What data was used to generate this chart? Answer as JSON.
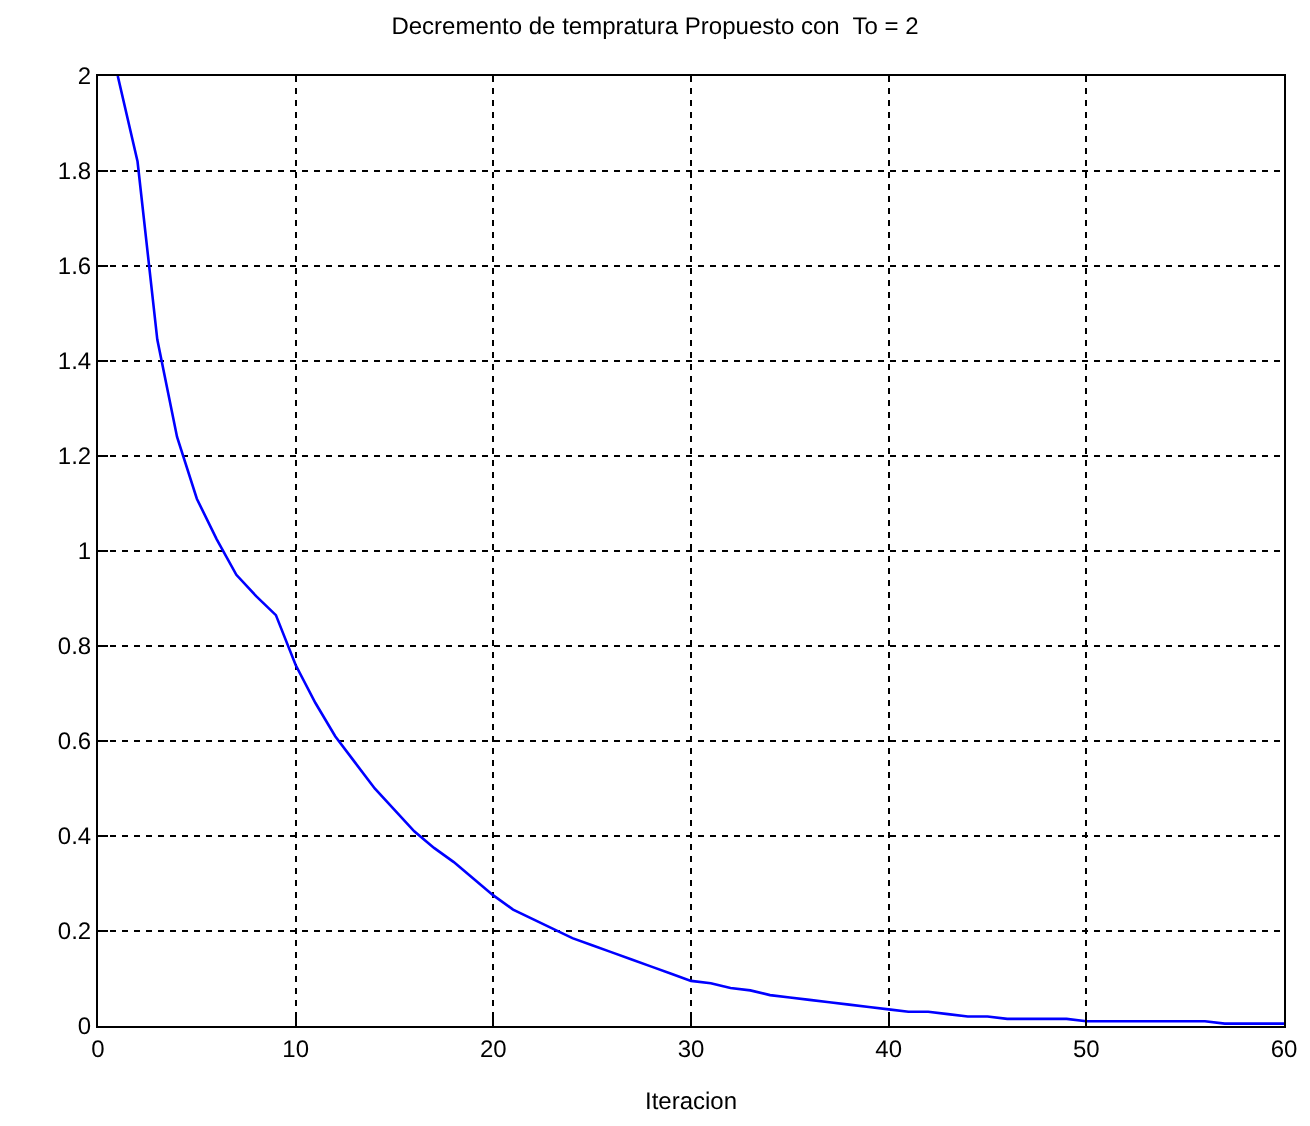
{
  "chart_data": {
    "type": "line",
    "title": "Decremento de tempratura Propuesto con  To = 2",
    "xlabel": "Iteracion",
    "x": [
      1,
      2,
      3,
      4,
      5,
      6,
      7,
      8,
      9,
      10,
      11,
      12,
      13,
      14,
      15,
      16,
      17,
      18,
      19,
      20,
      21,
      22,
      23,
      24,
      25,
      26,
      27,
      28,
      29,
      30,
      31,
      32,
      33,
      34,
      35,
      36,
      37,
      38,
      39,
      40,
      41,
      42,
      43,
      44,
      45,
      46,
      47,
      48,
      49,
      50,
      51,
      52,
      53,
      54,
      55,
      56,
      57,
      58,
      59,
      60
    ],
    "series": [
      {
        "color": "#0000ff",
        "values": [
          2.0,
          1.82,
          1.445,
          1.24,
          1.11,
          1.025,
          0.95,
          0.905,
          0.865,
          0.76,
          0.68,
          0.61,
          0.555,
          0.5,
          0.455,
          0.41,
          0.375,
          0.345,
          0.31,
          0.275,
          0.245,
          0.225,
          0.205,
          0.185,
          0.17,
          0.155,
          0.14,
          0.125,
          0.11,
          0.095,
          0.09,
          0.08,
          0.075,
          0.065,
          0.06,
          0.055,
          0.05,
          0.045,
          0.04,
          0.035,
          0.03,
          0.03,
          0.025,
          0.02,
          0.02,
          0.015,
          0.015,
          0.015,
          0.015,
          0.01,
          0.01,
          0.01,
          0.01,
          0.01,
          0.01,
          0.01,
          0.005,
          0.005,
          0.005,
          0.005
        ]
      }
    ],
    "xlim": [
      0,
      60
    ],
    "xticks": [
      0,
      10,
      20,
      30,
      40,
      50,
      60
    ],
    "ylim": [
      0,
      2
    ],
    "yticks": [
      0,
      0.2,
      0.4,
      0.6,
      0.8,
      1,
      1.2,
      1.4,
      1.6,
      1.8,
      2
    ],
    "grid": true,
    "marker": "none",
    "line_style": "solid"
  }
}
